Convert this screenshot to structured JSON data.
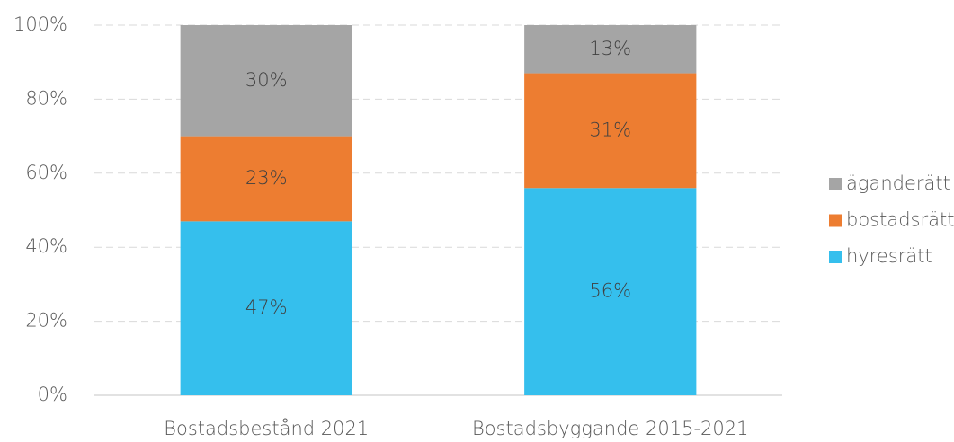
{
  "chart_data": {
    "type": "stacked_bar",
    "categories": [
      "Bostadsbestånd 2021",
      "Bostadsbyggande 2015-2021"
    ],
    "series": [
      {
        "name": "hyresrätt",
        "color": "#35bfed",
        "values": [
          47,
          56
        ],
        "value_labels": [
          "47%",
          "56%"
        ]
      },
      {
        "name": "bostadsrätt",
        "color": "#ed7d31",
        "values": [
          23,
          31
        ],
        "value_labels": [
          "23%",
          "31%"
        ]
      },
      {
        "name": "äganderätt",
        "color": "#a5a5a5",
        "values": [
          30,
          13
        ],
        "value_labels": [
          "30%",
          "13%"
        ]
      }
    ],
    "ylim": [
      0,
      100
    ],
    "yticks": [
      {
        "value": 0,
        "label": "0%"
      },
      {
        "value": 20,
        "label": "20%"
      },
      {
        "value": 40,
        "label": "40%"
      },
      {
        "value": 60,
        "label": "60%"
      },
      {
        "value": 80,
        "label": "80%"
      },
      {
        "value": 100,
        "label": "100%"
      }
    ],
    "grid": true,
    "legend": "right"
  }
}
